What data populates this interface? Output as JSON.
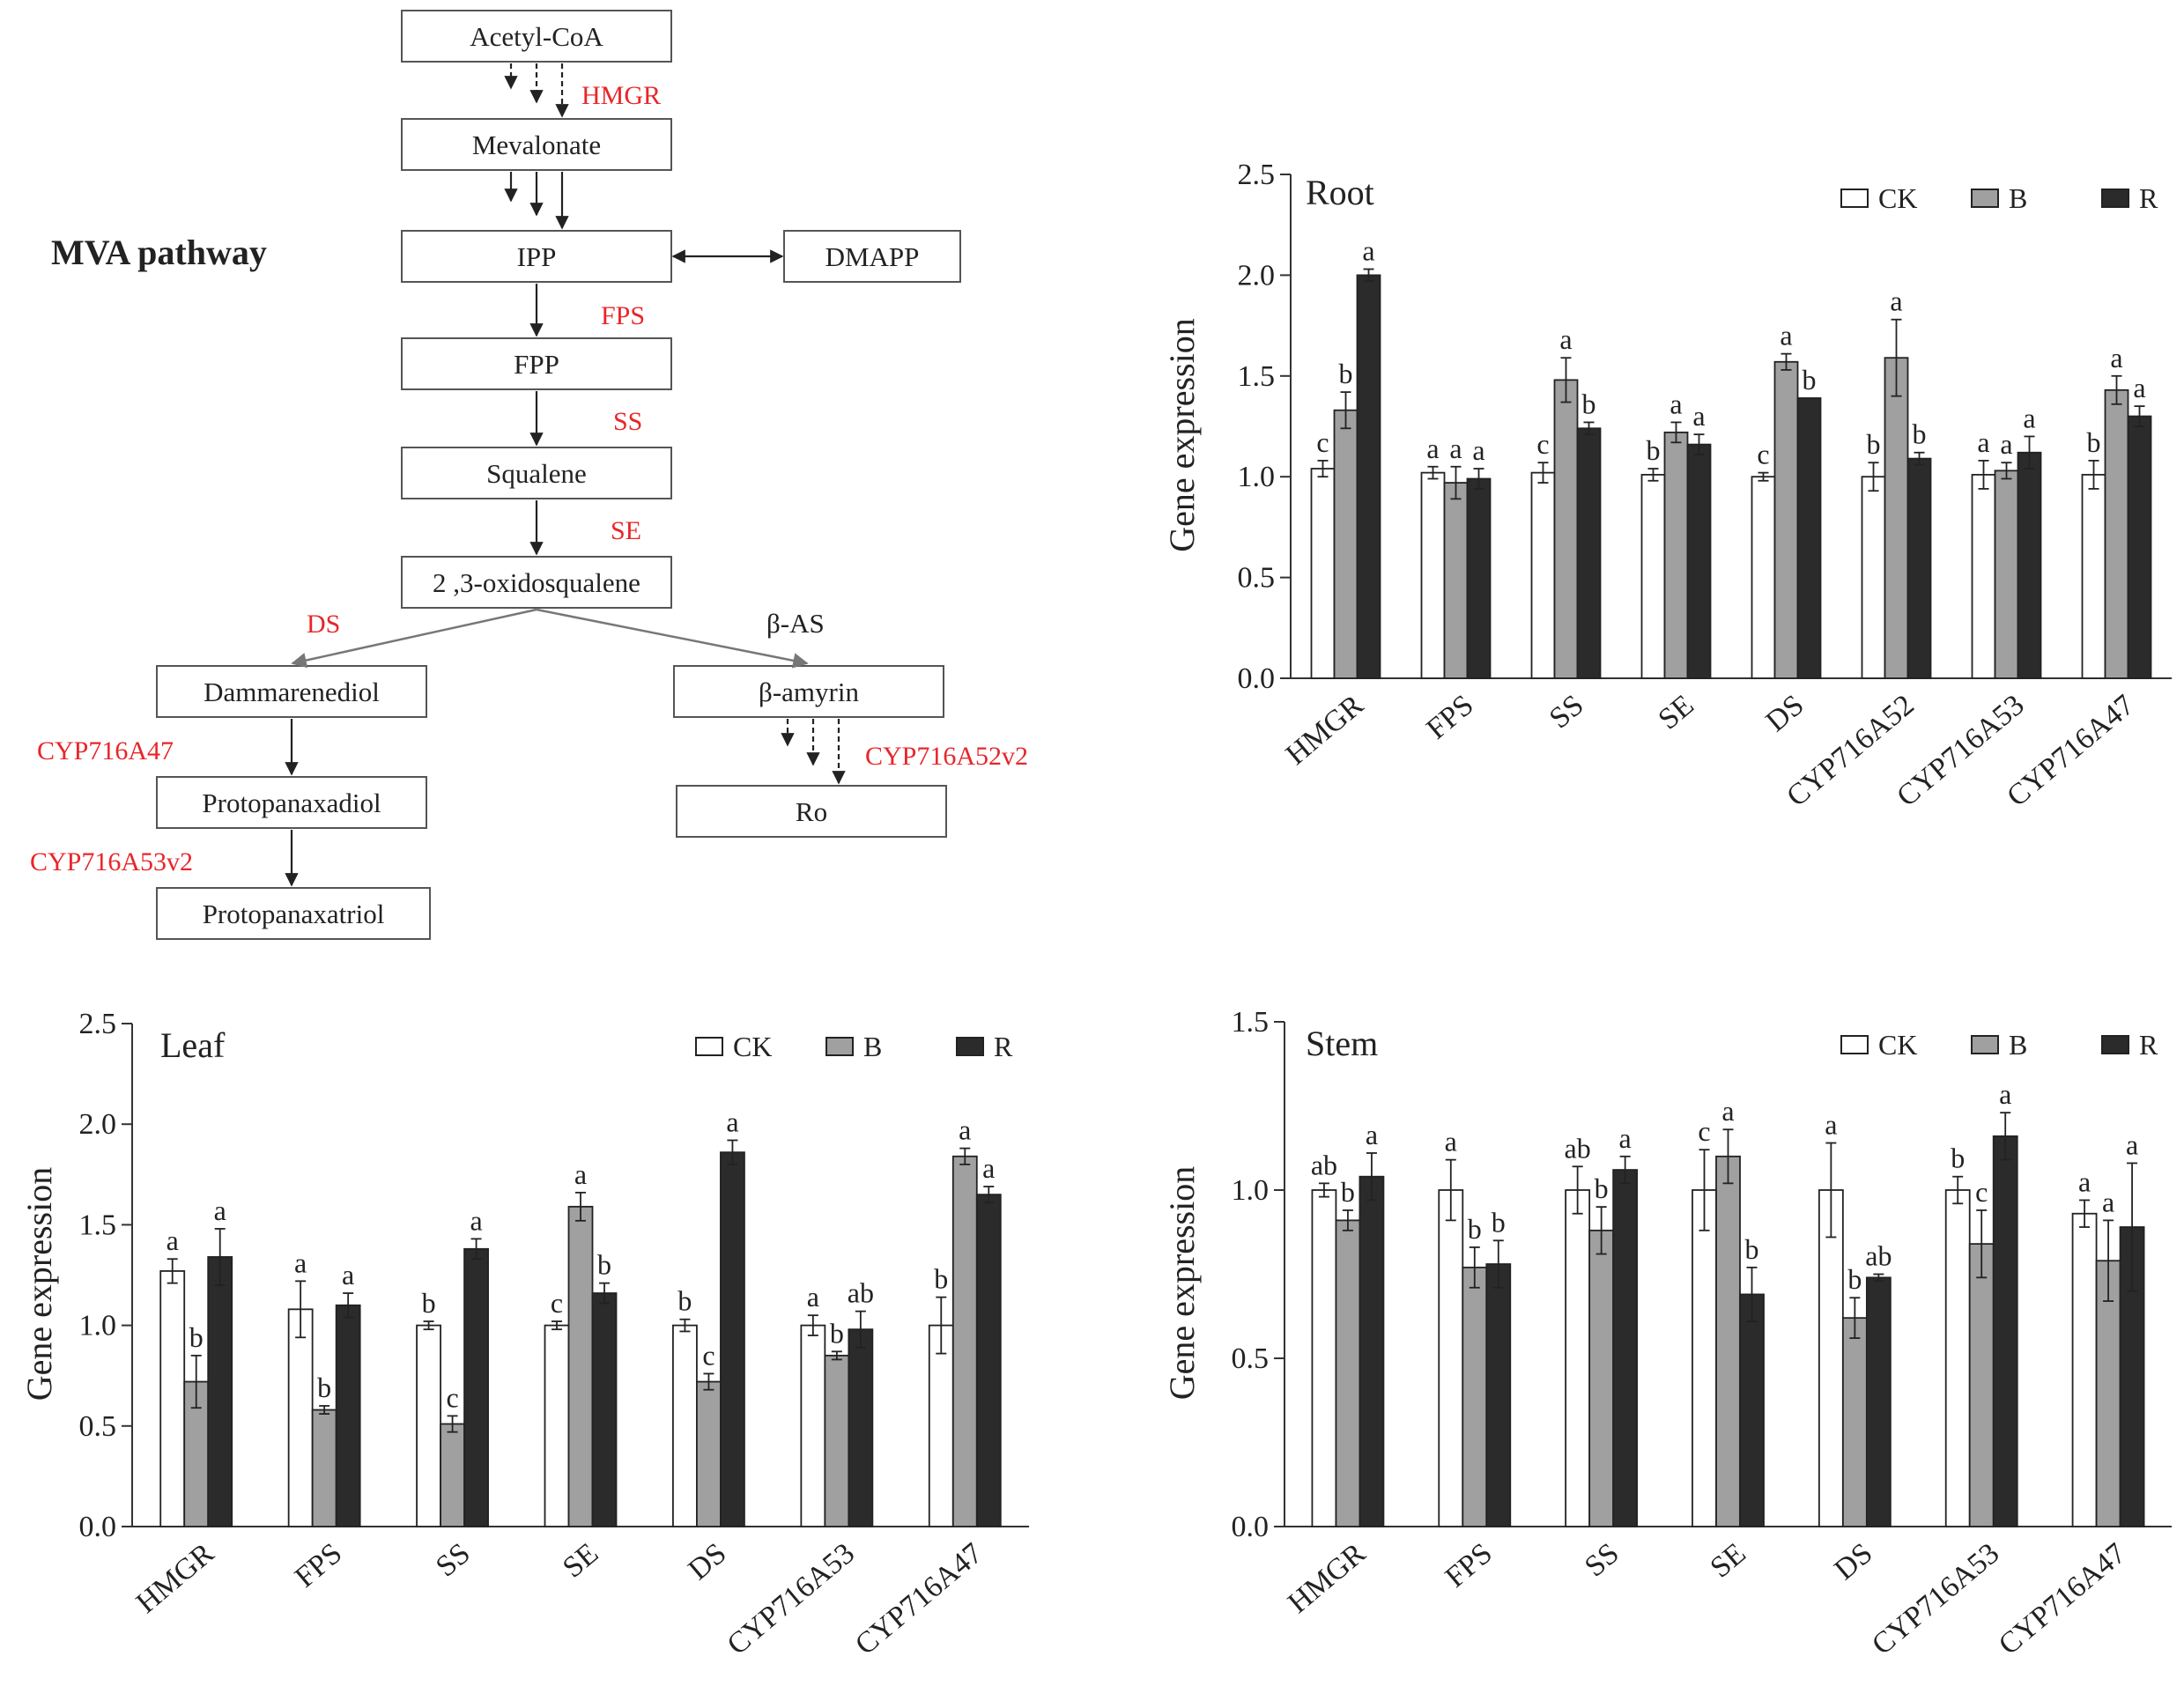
{
  "pathway": {
    "title": "MVA pathway",
    "nodes": {
      "acetyl": "Acetyl-CoA",
      "mevalonate": "Mevalonate",
      "ipp": "IPP",
      "dmapp": "DMAPP",
      "fpp": "FPP",
      "squalene": "Squalene",
      "oxido": "2 ,3-oxidosqualene",
      "dammarenediol": "Dammarenediol",
      "betaamyrin": "β-amyrin",
      "ppd": "Protopanaxadiol",
      "ppt": "Protopanaxatriol",
      "ro": "Ro"
    },
    "enzymes": {
      "hmgr": "HMGR",
      "fps": "FPS",
      "ss": "SS",
      "se": "SE",
      "ds": "DS",
      "bas": "β-AS",
      "cyp47": "CYP716A47",
      "cyp53v2": "CYP716A53v2",
      "cyp52v2": "CYP716A52v2"
    },
    "colors": {
      "enzyme": "#e8262a",
      "enzyme_black": "#222222",
      "box": "#555555"
    }
  },
  "chart_data": [
    {
      "id": "root",
      "type": "bar",
      "title": "Root",
      "ylabel": "Gene expression",
      "xlabel": "",
      "ylim": [
        0,
        2.5
      ],
      "yticks": [
        "0.0",
        "0.5",
        "1.0",
        "1.5",
        "2.0",
        "2.5"
      ],
      "categories": [
        "HMGR",
        "FPS",
        "SS",
        "SE",
        "DS",
        "CYP716A52",
        "CYP716A53",
        "CYP716A47"
      ],
      "series": [
        {
          "name": "CK",
          "color": "#ffffff",
          "values": [
            1.04,
            1.02,
            1.02,
            1.01,
            1.0,
            1.0,
            1.01,
            1.01
          ],
          "errors": [
            0.04,
            0.03,
            0.05,
            0.03,
            0.02,
            0.07,
            0.07,
            0.07
          ],
          "letters": [
            "c",
            "a",
            "c",
            "b",
            "c",
            "b",
            "a",
            "b"
          ]
        },
        {
          "name": "B",
          "color": "#a0a0a0",
          "values": [
            1.33,
            0.97,
            1.48,
            1.22,
            1.57,
            1.59,
            1.03,
            1.43
          ],
          "errors": [
            0.09,
            0.08,
            0.11,
            0.05,
            0.04,
            0.19,
            0.04,
            0.07
          ],
          "letters": [
            "b",
            "a",
            "a",
            "a",
            "a",
            "a",
            "a",
            "a"
          ]
        },
        {
          "name": "R",
          "color": "#2b2b2b",
          "values": [
            2.0,
            0.99,
            1.24,
            1.16,
            1.39,
            1.09,
            1.12,
            1.3
          ],
          "errors": [
            0.03,
            0.05,
            0.03,
            0.05,
            0.0,
            0.03,
            0.08,
            0.05
          ],
          "letters": [
            "a",
            "a",
            "b",
            "a",
            "b",
            "b",
            "a",
            "a"
          ]
        }
      ],
      "legend": "top-right"
    },
    {
      "id": "leaf",
      "type": "bar",
      "title": "Leaf",
      "ylabel": "Gene expression",
      "xlabel": "",
      "ylim": [
        0,
        2.5
      ],
      "yticks": [
        "0.0",
        "0.5",
        "1.0",
        "1.5",
        "2.0",
        "2.5"
      ],
      "categories": [
        "HMGR",
        "FPS",
        "SS",
        "SE",
        "DS",
        "CYP716A53",
        "CYP716A47"
      ],
      "series": [
        {
          "name": "CK",
          "color": "#ffffff",
          "values": [
            1.27,
            1.08,
            1.0,
            1.0,
            1.0,
            1.0,
            1.0
          ],
          "errors": [
            0.06,
            0.14,
            0.02,
            0.02,
            0.03,
            0.05,
            0.14
          ],
          "letters": [
            "a",
            "a",
            "b",
            "c",
            "b",
            "a",
            "b"
          ]
        },
        {
          "name": "B",
          "color": "#a0a0a0",
          "values": [
            0.72,
            0.58,
            0.51,
            1.59,
            0.72,
            0.85,
            1.84
          ],
          "errors": [
            0.13,
            0.02,
            0.04,
            0.07,
            0.04,
            0.02,
            0.04
          ],
          "letters": [
            "b",
            "b",
            "c",
            "a",
            "c",
            "b",
            "a"
          ]
        },
        {
          "name": "R",
          "color": "#2b2b2b",
          "values": [
            1.34,
            1.1,
            1.38,
            1.16,
            1.86,
            0.98,
            1.65
          ],
          "errors": [
            0.14,
            0.06,
            0.05,
            0.05,
            0.06,
            0.09,
            0.04
          ],
          "letters": [
            "a",
            "a",
            "a",
            "b",
            "a",
            "ab",
            "a"
          ]
        }
      ],
      "legend": "top-right"
    },
    {
      "id": "stem",
      "type": "bar",
      "title": "Stem",
      "ylabel": "Gene expression",
      "xlabel": "",
      "ylim": [
        0,
        1.5
      ],
      "yticks": [
        "0.0",
        "0.5",
        "1.0",
        "1.5"
      ],
      "categories": [
        "HMGR",
        "FPS",
        "SS",
        "SE",
        "DS",
        "CYP716A53",
        "CYP716A47"
      ],
      "series": [
        {
          "name": "CK",
          "color": "#ffffff",
          "values": [
            1.0,
            1.0,
            1.0,
            1.0,
            1.0,
            1.0,
            0.93
          ],
          "errors": [
            0.02,
            0.09,
            0.07,
            0.12,
            0.14,
            0.04,
            0.04
          ],
          "letters": [
            "ab",
            "a",
            "ab",
            "c",
            "a",
            "b",
            "a"
          ]
        },
        {
          "name": "B",
          "color": "#a0a0a0",
          "values": [
            0.91,
            0.77,
            0.88,
            1.1,
            0.62,
            0.84,
            0.79
          ],
          "errors": [
            0.03,
            0.06,
            0.07,
            0.08,
            0.06,
            0.1,
            0.12
          ],
          "letters": [
            "b",
            "b",
            "b",
            "a",
            "b",
            "c",
            "a"
          ]
        },
        {
          "name": "R",
          "color": "#2b2b2b",
          "values": [
            1.04,
            0.78,
            1.06,
            0.69,
            0.74,
            1.16,
            0.89
          ],
          "errors": [
            0.07,
            0.07,
            0.04,
            0.08,
            0.01,
            0.07,
            0.19
          ],
          "letters": [
            "a",
            "b",
            "a",
            "b",
            "ab",
            "a",
            "a"
          ]
        }
      ],
      "legend": "top-right"
    }
  ]
}
